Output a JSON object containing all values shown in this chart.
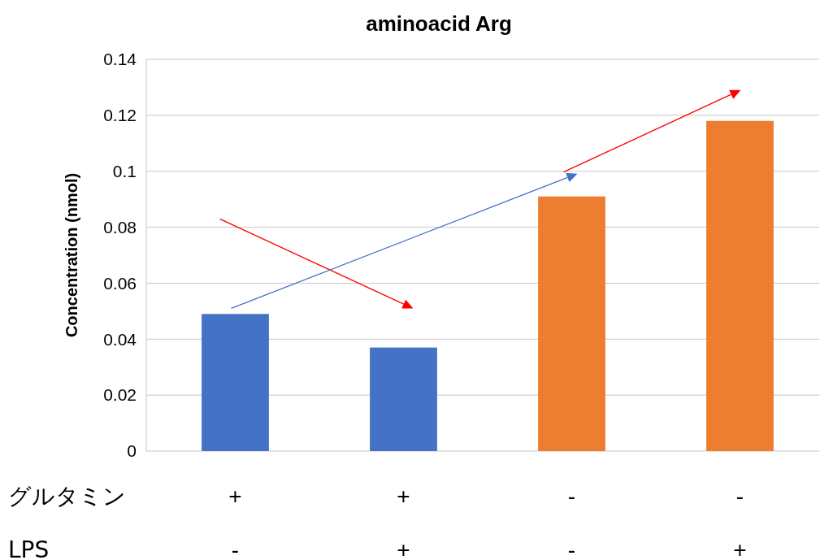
{
  "chart_data": {
    "type": "bar",
    "title": "aminoacid Arg",
    "ylabel": "Concentration (nmol)",
    "categories": [
      "+\n-",
      "+\n+",
      "-\n-",
      "-\n+"
    ],
    "values": [
      0.049,
      0.037,
      0.091,
      0.118
    ],
    "colors": [
      "#4472c4",
      "#4472c4",
      "#ed7d31",
      "#ed7d31"
    ],
    "ylim": [
      0,
      0.14
    ],
    "yticks": [
      0,
      0.02,
      0.04,
      0.06,
      0.08,
      0.1,
      0.12,
      0.14
    ],
    "grid": "y",
    "annotations": [
      "グルタミン",
      "LPS"
    ]
  }
}
